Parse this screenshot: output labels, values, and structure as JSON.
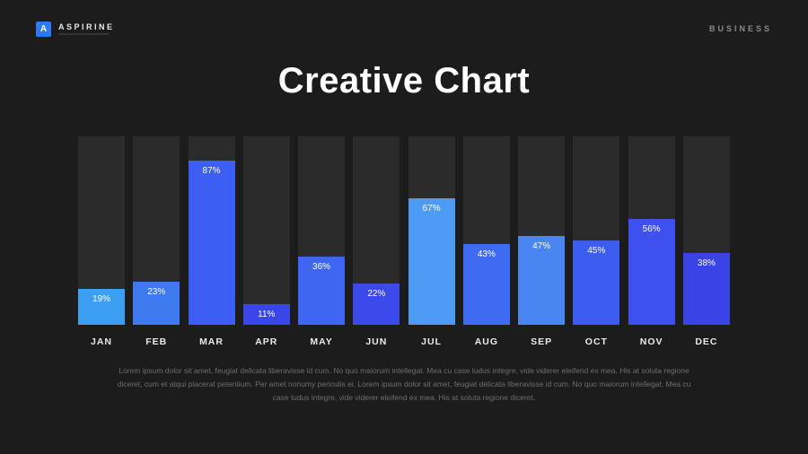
{
  "header": {
    "logo": {
      "letter": "A",
      "name": "ASPIRINE"
    },
    "right_label": "BUSINESS"
  },
  "title": "Creative Chart",
  "chart_data": {
    "type": "bar",
    "title": "Creative Chart",
    "categories": [
      "JAN",
      "FEB",
      "MAR",
      "APR",
      "MAY",
      "JUN",
      "JUL",
      "AUG",
      "SEP",
      "OCT",
      "NOV",
      "DEC"
    ],
    "values": [
      19,
      23,
      87,
      11,
      36,
      22,
      67,
      43,
      47,
      45,
      56,
      38
    ],
    "value_suffix": "%",
    "ylim": [
      0,
      100
    ],
    "grid": false,
    "legend": false,
    "track_color": "#2b2b2b",
    "bar_colors": [
      "#3d9ff2",
      "#3e79f0",
      "#3d5ef3",
      "#3a46e9",
      "#3f66f2",
      "#3c4aec",
      "#4e9bf5",
      "#3f6bf2",
      "#4a86f2",
      "#3d5cf0",
      "#3e50f0",
      "#3a43e6"
    ]
  },
  "footer": {
    "paragraph": "Lorem ipsum dolor sit amet, feugiat delicata liberavisse id cum. No quo maiorum intellegat. Mea cu case ludus integre, vide viderer eleifend ex mea. His at soluta regione diceret, cum et atqui placerat petentium. Per amet nonumy periculis ei. Lorem ipsum dolor sit amet, feugiat delicata liberavisse id cum. No quo maiorum intellegat. Mea cu case ludus integre, vide viderer eleifend ex mea. His at soluta regione diceret."
  }
}
